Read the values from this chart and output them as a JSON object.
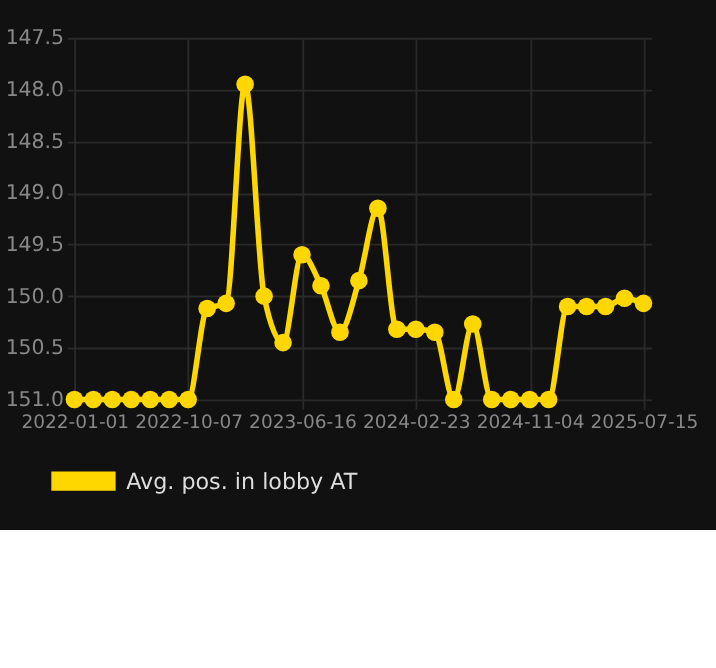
{
  "chart_data": {
    "type": "line",
    "categories": [
      "2022-01-01",
      null,
      null,
      null,
      null,
      null,
      "2022-10-07",
      null,
      null,
      null,
      null,
      null,
      "2023-06-16",
      null,
      null,
      null,
      null,
      null,
      "2024-02-23",
      null,
      null,
      null,
      null,
      null,
      "2024-11-04",
      null,
      null,
      null,
      null,
      null,
      "2025-07-15"
    ],
    "series": [
      {
        "name": "Avg. pos. in lobby AT",
        "color": "#ffd700",
        "values": [
          151.0,
          151.0,
          151.0,
          151.0,
          151.0,
          151.0,
          151.0,
          150.12,
          150.07,
          147.95,
          150.0,
          150.45,
          149.6,
          149.9,
          150.35,
          149.85,
          149.15,
          150.32,
          150.32,
          150.35,
          151.0,
          150.27,
          151.0,
          151.0,
          151.0,
          151.0,
          150.1,
          150.1,
          150.1,
          150.02,
          150.07
        ]
      }
    ],
    "ylim": [
      151.0,
      147.5
    ],
    "yticks": [
      {
        "value": 147.5,
        "label": "147.5"
      },
      {
        "value": 148,
        "label": "148.0"
      },
      {
        "value": 148.5,
        "label": "148.5"
      },
      {
        "value": 149,
        "label": "149.0"
      },
      {
        "value": 149.5,
        "label": "149.5"
      },
      {
        "value": 150,
        "label": "150.0"
      },
      {
        "value": 150.5,
        "label": "150.5"
      },
      {
        "value": 151,
        "label": "151.0"
      }
    ],
    "grid": true,
    "legend": "bottom",
    "marker": "circle",
    "line_style": "solid"
  }
}
